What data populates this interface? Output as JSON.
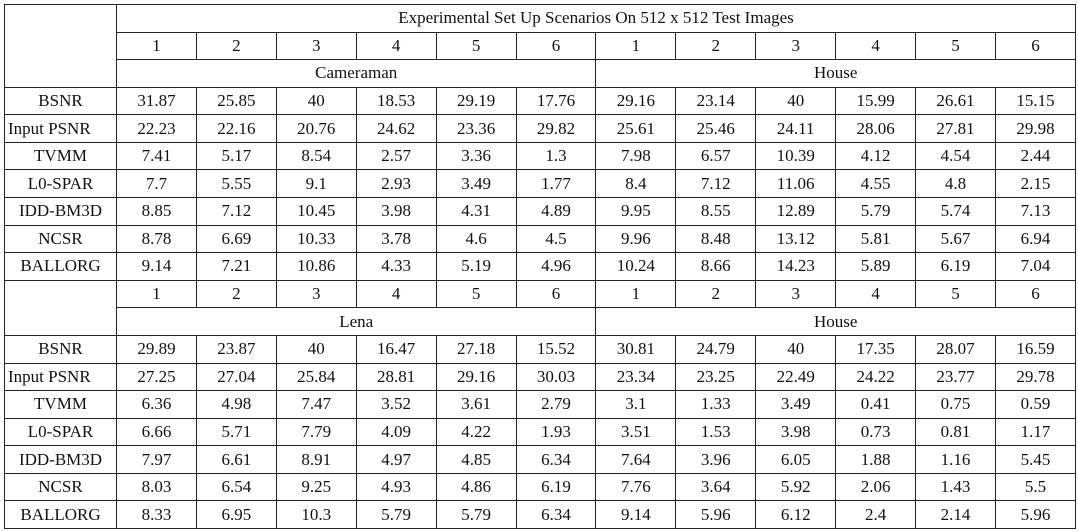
{
  "table": {
    "title": "Experimental Set Up Scenarios On 512 x 512 Test Images",
    "blocks": [
      {
        "scenarios": [
          1,
          2,
          3,
          4,
          5,
          6,
          1,
          2,
          3,
          4,
          5,
          6
        ],
        "images": [
          "Cameraman",
          "House"
        ],
        "rows": [
          {
            "label": "BSNR",
            "values": [
              31.87,
              25.85,
              40,
              18.53,
              29.19,
              17.76,
              29.16,
              23.14,
              40,
              15.99,
              26.61,
              15.15
            ]
          },
          {
            "label": "Input PSNR",
            "values": [
              22.23,
              22.16,
              20.76,
              24.62,
              23.36,
              29.82,
              25.61,
              25.46,
              24.11,
              28.06,
              27.81,
              29.98
            ]
          },
          {
            "label": "TVMM",
            "values": [
              7.41,
              5.17,
              8.54,
              2.57,
              3.36,
              1.3,
              7.98,
              6.57,
              10.39,
              4.12,
              4.54,
              2.44
            ]
          },
          {
            "label": "L0-SPAR",
            "values": [
              7.7,
              5.55,
              9.1,
              2.93,
              3.49,
              1.77,
              8.4,
              7.12,
              11.06,
              4.55,
              4.8,
              2.15
            ]
          },
          {
            "label": "IDD-BM3D",
            "values": [
              8.85,
              7.12,
              10.45,
              3.98,
              4.31,
              4.89,
              9.95,
              8.55,
              12.89,
              5.79,
              5.74,
              7.13
            ]
          },
          {
            "label": "NCSR",
            "values": [
              8.78,
              6.69,
              10.33,
              3.78,
              4.6,
              4.5,
              9.96,
              8.48,
              13.12,
              5.81,
              5.67,
              6.94
            ]
          },
          {
            "label": "BALLORG",
            "values": [
              9.14,
              7.21,
              10.86,
              4.33,
              5.19,
              4.96,
              10.24,
              8.66,
              14.23,
              5.89,
              6.19,
              7.04
            ]
          }
        ]
      },
      {
        "scenarios": [
          1,
          2,
          3,
          4,
          5,
          6,
          1,
          2,
          3,
          4,
          5,
          6
        ],
        "images": [
          "Lena",
          "House"
        ],
        "rows": [
          {
            "label": "BSNR",
            "values": [
              29.89,
              23.87,
              40,
              16.47,
              27.18,
              15.52,
              30.81,
              24.79,
              40,
              17.35,
              28.07,
              16.59
            ]
          },
          {
            "label": "Input PSNR",
            "values": [
              27.25,
              27.04,
              25.84,
              28.81,
              29.16,
              30.03,
              23.34,
              23.25,
              22.49,
              24.22,
              23.77,
              29.78
            ]
          },
          {
            "label": "TVMM",
            "values": [
              6.36,
              4.98,
              7.47,
              3.52,
              3.61,
              2.79,
              3.1,
              1.33,
              3.49,
              0.41,
              0.75,
              0.59
            ]
          },
          {
            "label": "L0-SPAR",
            "values": [
              6.66,
              5.71,
              7.79,
              4.09,
              4.22,
              1.93,
              3.51,
              1.53,
              3.98,
              0.73,
              0.81,
              1.17
            ]
          },
          {
            "label": "IDD-BM3D",
            "values": [
              7.97,
              6.61,
              8.91,
              4.97,
              4.85,
              6.34,
              7.64,
              3.96,
              6.05,
              1.88,
              1.16,
              5.45
            ]
          },
          {
            "label": "NCSR",
            "values": [
              8.03,
              6.54,
              9.25,
              4.93,
              4.86,
              6.19,
              7.76,
              3.64,
              5.92,
              2.06,
              1.43,
              5.5
            ]
          },
          {
            "label": "BALLORG",
            "values": [
              8.33,
              6.95,
              10.3,
              5.79,
              5.79,
              6.34,
              9.14,
              5.96,
              6.12,
              2.4,
              2.14,
              5.96
            ]
          }
        ]
      }
    ]
  }
}
